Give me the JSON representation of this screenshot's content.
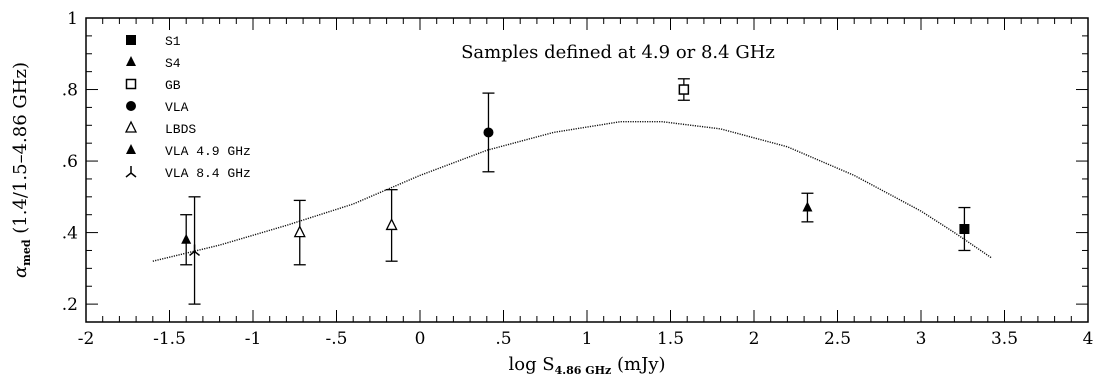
{
  "chart_data": {
    "type": "scatter",
    "title": "Samples defined at 4.9 or 8.4 GHz",
    "xlabel": {
      "prefix": "log S",
      "subscript": "4.86 GHz",
      "suffix": " (mJy)"
    },
    "ylabel": {
      "symbol": "α",
      "subscript": "med",
      "suffix": "  (1.4/1.5–4.86 GHz)"
    },
    "xlim": [
      -2,
      4
    ],
    "ylim": [
      0.15,
      1.0
    ],
    "xticks": [
      {
        "v": -2,
        "label": "-2"
      },
      {
        "v": -1.5,
        "label": "-1.5"
      },
      {
        "v": -1,
        "label": "-1"
      },
      {
        "v": -0.5,
        "label": "-.5"
      },
      {
        "v": 0,
        "label": "0"
      },
      {
        "v": 0.5,
        "label": ".5"
      },
      {
        "v": 1,
        "label": "1"
      },
      {
        "v": 1.5,
        "label": "1.5"
      },
      {
        "v": 2,
        "label": "2"
      },
      {
        "v": 2.5,
        "label": "2.5"
      },
      {
        "v": 3,
        "label": "3"
      },
      {
        "v": 3.5,
        "label": "3.5"
      },
      {
        "v": 4,
        "label": "4"
      }
    ],
    "yticks": [
      {
        "v": 0.2,
        "label": ".2"
      },
      {
        "v": 0.4,
        "label": ".4"
      },
      {
        "v": 0.6,
        "label": ".6"
      },
      {
        "v": 0.8,
        "label": ".8"
      },
      {
        "v": 1.0,
        "label": "1"
      }
    ],
    "grid": false,
    "legend_position": "top-left",
    "series": [
      {
        "name": "S1",
        "marker": "filled-square",
        "points": [
          {
            "x": 3.26,
            "y": 0.41,
            "lo": 0.35,
            "hi": 0.47
          }
        ]
      },
      {
        "name": "S4",
        "marker": "filled-triangle",
        "points": [
          {
            "x": 2.32,
            "y": 0.47,
            "lo": 0.43,
            "hi": 0.51
          }
        ]
      },
      {
        "name": "GB",
        "marker": "open-square",
        "points": [
          {
            "x": 1.58,
            "y": 0.8,
            "lo": 0.77,
            "hi": 0.83
          }
        ]
      },
      {
        "name": "VLA",
        "marker": "filled-circle",
        "points": [
          {
            "x": 0.41,
            "y": 0.68,
            "lo": 0.57,
            "hi": 0.79
          }
        ]
      },
      {
        "name": "LBDS",
        "marker": "open-triangle",
        "points": [
          {
            "x": -0.72,
            "y": 0.4,
            "lo": 0.31,
            "hi": 0.49
          },
          {
            "x": -0.17,
            "y": 0.42,
            "lo": 0.32,
            "hi": 0.52
          }
        ]
      },
      {
        "name": "VLA 4.9 GHz",
        "marker": "filled-triangle",
        "points": [
          {
            "x": -1.4,
            "y": 0.38,
            "lo": 0.31,
            "hi": 0.45
          }
        ]
      },
      {
        "name": "VLA 8.4 GHz",
        "marker": "tripod",
        "points": [
          {
            "x": -1.35,
            "y": 0.35,
            "lo": 0.2,
            "hi": 0.5
          }
        ]
      }
    ],
    "fit_curve": {
      "style": "dotted",
      "x": [
        -1.6,
        -1.2,
        -0.8,
        -0.4,
        0.0,
        0.4,
        0.8,
        1.2,
        1.45,
        1.8,
        2.2,
        2.6,
        3.0,
        3.2,
        3.42
      ],
      "y": [
        0.32,
        0.365,
        0.42,
        0.48,
        0.56,
        0.63,
        0.68,
        0.71,
        0.71,
        0.69,
        0.64,
        0.56,
        0.46,
        0.4,
        0.33
      ]
    }
  }
}
